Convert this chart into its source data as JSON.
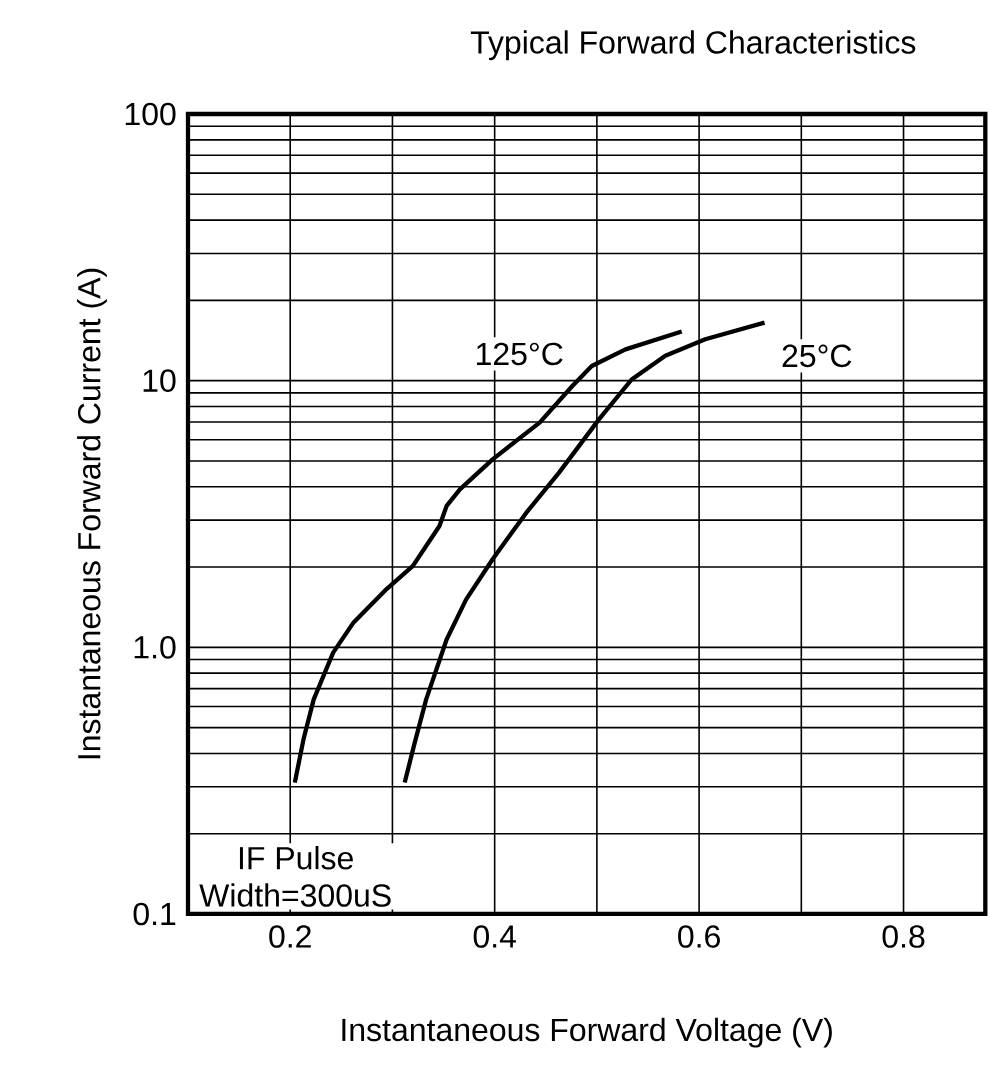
{
  "chart_data": {
    "type": "line",
    "title": "Typical Forward Characteristics",
    "xlabel": "Instantaneous Forward Voltage (V)",
    "ylabel": "Instantaneous Forward Current (A)",
    "log": "y",
    "grid": true,
    "xlim": [
      0.1,
      0.88
    ],
    "ylim": [
      0.1,
      100
    ],
    "xticks": [
      {
        "value": 0.1,
        "label": null
      },
      0.2,
      {
        "value": 0.3,
        "label": null
      },
      0.4,
      {
        "value": 0.5,
        "label": null
      },
      0.6,
      {
        "value": 0.7,
        "label": null
      },
      0.8
    ],
    "yticks": [
      {
        "value": 0.1,
        "label": "0.1"
      },
      {
        "value": 1,
        "label": "1.0"
      },
      {
        "value": 10,
        "label": "10"
      },
      {
        "value": 100,
        "label": "100"
      }
    ],
    "annotations": [
      "IF Pulse",
      "Width=300uS"
    ],
    "series": [
      {
        "name": "125°C",
        "color": "#000000",
        "x": [
          0.2045,
          0.213,
          0.223,
          0.242,
          0.262,
          0.294,
          0.32,
          0.346,
          0.353,
          0.366,
          0.398,
          0.444,
          0.476,
          0.495,
          0.528,
          0.583
        ],
        "values": [
          0.311,
          0.452,
          0.638,
          0.955,
          1.24,
          1.65,
          2.02,
          2.85,
          3.39,
          3.91,
          5.07,
          6.96,
          9.55,
          11.35,
          13.1,
          15.3
        ]
      },
      {
        "name": "25°C",
        "color": "#000000",
        "x": [
          0.312,
          0.321,
          0.333,
          0.353,
          0.372,
          0.398,
          0.431,
          0.463,
          0.502,
          0.534,
          0.567,
          0.606,
          0.664
        ],
        "values": [
          0.311,
          0.427,
          0.638,
          1.07,
          1.51,
          2.14,
          3.2,
          4.52,
          7.16,
          10.1,
          12.4,
          14.3,
          16.5
        ]
      }
    ]
  }
}
